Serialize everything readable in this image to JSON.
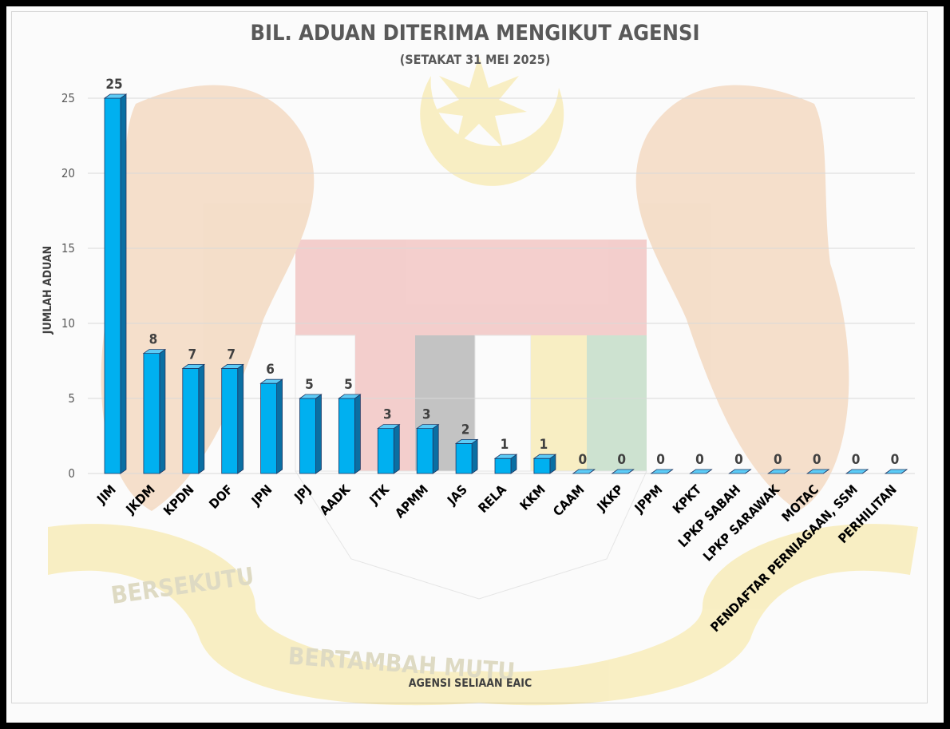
{
  "chart_data": {
    "type": "bar",
    "title": "BIL. ADUAN DITERIMA MENGIKUT AGENSI",
    "subtitle": "(SETAKAT 31 MEI 2025)",
    "xlabel": "AGENSI SELIAAN EAIC",
    "ylabel": "JUMLAH ADUAN",
    "ylim": [
      0,
      25
    ],
    "yticks": [
      "0",
      "5",
      "10",
      "15",
      "20",
      "25"
    ],
    "grid": true,
    "categories": [
      "JIM",
      "JKDM",
      "KPDN",
      "DOF",
      "JPN",
      "JPJ",
      "AADK",
      "JTK",
      "APMM",
      "JAS",
      "RELA",
      "KKM",
      "CAAM",
      "JKKP",
      "JPPM",
      "KPKT",
      "LPKP SABAH",
      "LPKP SARAWAK",
      "MOTAC",
      "PENDAFTAR PERNIAGAAN, SSM",
      "PERHILITAN"
    ],
    "values": [
      25,
      8,
      7,
      7,
      6,
      5,
      5,
      3,
      3,
      2,
      1,
      1,
      0,
      0,
      0,
      0,
      0,
      0,
      0,
      0,
      0
    ],
    "data_labels": [
      "25",
      "8",
      "7",
      "7",
      "6",
      "5",
      "5",
      "3",
      "3",
      "2",
      "1",
      "1",
      "0",
      "0",
      "0",
      "0",
      "0",
      "0",
      "0",
      "0",
      "0"
    ],
    "colors": {
      "bar_front": "#00B0F0",
      "bar_side": "#0A6FA3",
      "bar_top": "#5CCBF6",
      "bar_edge": "#1F3864"
    }
  },
  "watermark": {
    "motto_left": "BERSEKUTU",
    "motto_right": "BERTAMBAH MUTU"
  }
}
